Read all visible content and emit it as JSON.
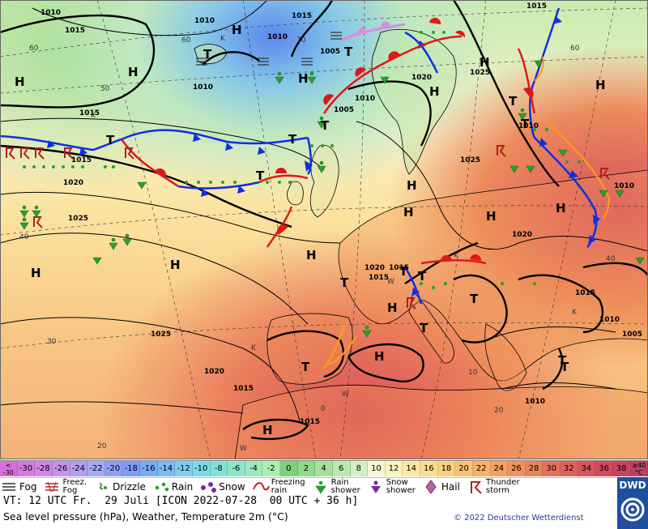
{
  "map": {
    "pressure_labels": [
      {
        "text": "1010"
      },
      {
        "text": "1015"
      },
      {
        "text": "1010"
      },
      {
        "text": "1015"
      },
      {
        "text": "1010"
      },
      {
        "text": "1005"
      },
      {
        "text": "1010"
      },
      {
        "text": "1015"
      },
      {
        "text": "1020"
      },
      {
        "text": "1025"
      },
      {
        "text": "1015"
      },
      {
        "text": "1010"
      },
      {
        "text": "1005"
      },
      {
        "text": "1010"
      },
      {
        "text": "1015"
      },
      {
        "text": "1020"
      },
      {
        "text": "1025"
      },
      {
        "text": "1020"
      },
      {
        "text": "1025"
      },
      {
        "text": "1020"
      },
      {
        "text": "1015"
      },
      {
        "text": "1015"
      },
      {
        "text": "1015"
      },
      {
        "text": "1010"
      },
      {
        "text": "1005"
      },
      {
        "text": "1010"
      },
      {
        "text": "1015"
      },
      {
        "text": "1010"
      },
      {
        "text": "1020"
      },
      {
        "text": "1015"
      },
      {
        "text": "1025"
      }
    ],
    "centers": [
      {
        "text": "H"
      },
      {
        "text": "H"
      },
      {
        "text": "H"
      },
      {
        "text": "H"
      },
      {
        "text": "H"
      },
      {
        "text": "H"
      },
      {
        "text": "H"
      },
      {
        "text": "H"
      },
      {
        "text": "H"
      },
      {
        "text": "H"
      },
      {
        "text": "H"
      },
      {
        "text": "H"
      },
      {
        "text": "H"
      },
      {
        "text": "H"
      },
      {
        "text": "H"
      },
      {
        "text": "H"
      },
      {
        "text": "H"
      },
      {
        "text": "T"
      },
      {
        "text": "T"
      },
      {
        "text": "T"
      },
      {
        "text": "T"
      },
      {
        "text": "T"
      },
      {
        "text": "T"
      },
      {
        "text": "T"
      },
      {
        "text": "T"
      },
      {
        "text": "T"
      },
      {
        "text": "T"
      },
      {
        "text": "T"
      },
      {
        "text": "T"
      },
      {
        "text": "T"
      },
      {
        "text": "T"
      },
      {
        "text": "T"
      },
      {
        "text": "T"
      }
    ],
    "small_labels": [
      {
        "text": "60"
      },
      {
        "text": "60"
      },
      {
        "text": "50"
      },
      {
        "text": "70"
      },
      {
        "text": "60"
      },
      {
        "text": "40"
      },
      {
        "text": "40"
      },
      {
        "text": "30"
      },
      {
        "text": "20"
      },
      {
        "text": "10"
      },
      {
        "text": "0"
      },
      {
        "text": "20"
      },
      {
        "text": "K"
      },
      {
        "text": "K"
      },
      {
        "text": "K"
      },
      {
        "text": "K"
      },
      {
        "text": "W"
      },
      {
        "text": "W"
      },
      {
        "text": "W"
      },
      {
        "text": "K"
      }
    ]
  },
  "scale": {
    "unit": "°C",
    "low_end_top": "<",
    "low_end_bottom": "-30",
    "high_end_top": "≥40",
    "high_end_bottom": "°C",
    "cells": [
      {
        "label": "-30",
        "color": "#d67be0"
      },
      {
        "label": "-28",
        "color": "#cf86e6"
      },
      {
        "label": "-26",
        "color": "#c493ea"
      },
      {
        "label": "-24",
        "color": "#b49eef"
      },
      {
        "label": "-22",
        "color": "#a4a9f3"
      },
      {
        "label": "-20",
        "color": "#8f9df5"
      },
      {
        "label": "-18",
        "color": "#7f9bf5"
      },
      {
        "label": "-16",
        "color": "#7aabf5"
      },
      {
        "label": "-14",
        "color": "#7bbcf4"
      },
      {
        "label": "-12",
        "color": "#7ccdf0"
      },
      {
        "label": "-10",
        "color": "#7ddbe8"
      },
      {
        "label": "-8",
        "color": "#82e2db"
      },
      {
        "label": "-6",
        "color": "#8ee5cc"
      },
      {
        "label": "-4",
        "color": "#9de8bd"
      },
      {
        "label": "-2",
        "color": "#b0ecb0"
      },
      {
        "label": "0",
        "color": "#7fd07a"
      },
      {
        "label": "2",
        "color": "#90d98a"
      },
      {
        "label": "4",
        "color": "#a7e09c"
      },
      {
        "label": "6",
        "color": "#bde8ae"
      },
      {
        "label": "8",
        "color": "#d4f0c2"
      },
      {
        "label": "10",
        "color": "#f7f5d2"
      },
      {
        "label": "12",
        "color": "#fbf2bd"
      },
      {
        "label": "14",
        "color": "#fbe9a6"
      },
      {
        "label": "16",
        "color": "#fbdd91"
      },
      {
        "label": "18",
        "color": "#fbd080"
      },
      {
        "label": "20",
        "color": "#f9c272"
      },
      {
        "label": "22",
        "color": "#f6b367"
      },
      {
        "label": "24",
        "color": "#f2a35f"
      },
      {
        "label": "26",
        "color": "#ee935b"
      },
      {
        "label": "28",
        "color": "#e98359"
      },
      {
        "label": "30",
        "color": "#e47259"
      },
      {
        "label": "32",
        "color": "#de6259"
      },
      {
        "label": "34",
        "color": "#d6565b"
      },
      {
        "label": "36",
        "color": "#cf4c5e"
      },
      {
        "label": "38",
        "color": "#c9455f"
      }
    ],
    "low_color": "#d86fd8",
    "high_color": "#bf3f62"
  },
  "legend": {
    "items": [
      {
        "label": "Fog",
        "icon": "fog-icon"
      },
      {
        "label_top": "Freez.",
        "label_bottom": "Fog",
        "icon": "freezing-fog-icon"
      },
      {
        "label": "Drizzle",
        "icon": "drizzle-icon"
      },
      {
        "label": "Rain",
        "icon": "rain-icon"
      },
      {
        "label": "Snow",
        "icon": "snow-icon"
      },
      {
        "label_top": "Freezing",
        "label_bottom": "rain",
        "icon": "freezing-rain-icon"
      },
      {
        "label_top": "Rain",
        "label_bottom": "shower",
        "icon": "rain-shower-icon"
      },
      {
        "label_top": "Snow",
        "label_bottom": "shower",
        "icon": "snow-shower-icon"
      },
      {
        "label": "Hail",
        "icon": "hail-icon"
      },
      {
        "label_top": "Thunder",
        "label_bottom": "storm",
        "icon": "thunderstorm-icon"
      }
    ]
  },
  "footer": {
    "valid_time": "VT: 12 UTC Fr.  29 Juli [ICON 2022-07-28  00 UTC + 36 h]",
    "subtitle": "Sea level pressure (hPa), Weather, Temperature 2m (°C)",
    "copyright": "© 2022 Deutscher Wetterdienst",
    "logo_text": "DWD"
  },
  "colors": {
    "cold_front": "#1030e0",
    "warm_front": "#e01818",
    "occluded_front": "#d98ce0",
    "trough": "#ff9a1a",
    "isobar": "#000000"
  }
}
